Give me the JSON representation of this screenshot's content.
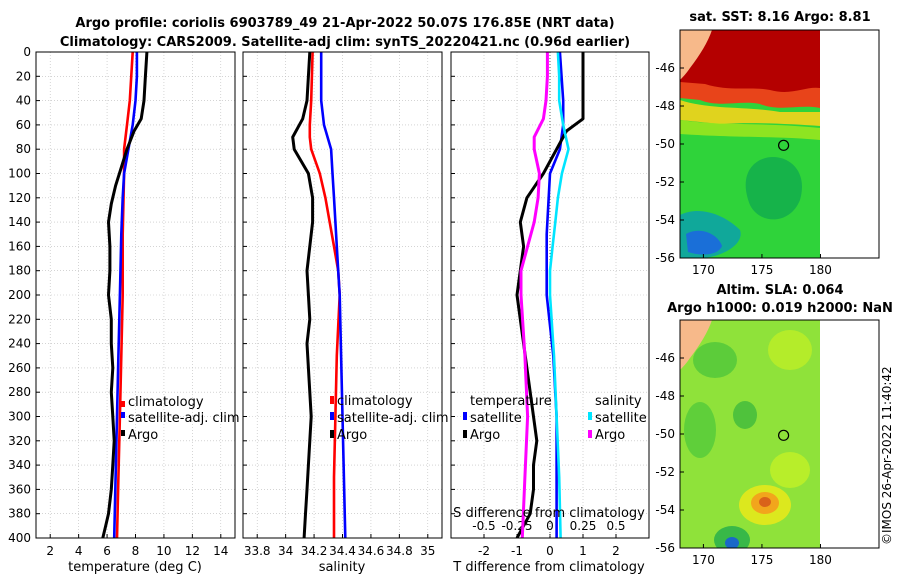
{
  "title_line1": "Argo profile: coriolis 6903789_49 21-Apr-2022 50.07S 176.85E (NRT data)",
  "title_line2": "Climatology: CARS2009. Satellite-adj clim: synTS_20220421.nc (0.96d earlier)",
  "credit": "©IMOS 26-Apr-2022 11:40:42",
  "colors": {
    "climatology": "#ff0000",
    "satellite": "#0000ff",
    "argo": "#000000",
    "sal_satellite": "#00e5ff",
    "sal_argo": "#ff00ff"
  },
  "chart_data": [
    {
      "type": "line",
      "id": "temperature",
      "xlabel": "temperature (deg C)",
      "ylabel": "depth",
      "xlim": [
        1,
        15
      ],
      "ylim": [
        0,
        400
      ],
      "yreversed": true,
      "xticks": [
        2,
        4,
        6,
        8,
        10,
        12,
        14
      ],
      "yticks": [
        0,
        20,
        40,
        60,
        80,
        100,
        120,
        140,
        160,
        180,
        200,
        220,
        240,
        260,
        280,
        300,
        320,
        340,
        360,
        380,
        400
      ],
      "grid": true,
      "legend": [
        "climatology",
        "satellite-adj. clim",
        "Argo"
      ],
      "series": [
        {
          "name": "climatology",
          "color": "#ff0000",
          "depth": [
            0,
            40,
            60,
            80,
            100,
            150,
            200,
            250,
            300,
            350,
            400
          ],
          "values": [
            7.8,
            7.6,
            7.4,
            7.2,
            7.2,
            7.1,
            7.1,
            7.0,
            6.9,
            6.8,
            6.7
          ]
        },
        {
          "name": "satellite-adj. clim",
          "color": "#0000ff",
          "depth": [
            0,
            20,
            40,
            60,
            80,
            100,
            120,
            150,
            200,
            250,
            300,
            350,
            400
          ],
          "values": [
            8.1,
            8.1,
            8.0,
            7.8,
            7.5,
            7.2,
            7.1,
            7.0,
            6.9,
            6.8,
            6.7,
            6.6,
            6.5
          ]
        },
        {
          "name": "Argo",
          "color": "#000000",
          "depth": [
            0,
            20,
            40,
            55,
            65,
            80,
            95,
            110,
            125,
            140,
            160,
            180,
            200,
            220,
            240,
            260,
            280,
            300,
            320,
            340,
            360,
            380,
            390,
            400
          ],
          "values": [
            8.8,
            8.7,
            8.6,
            8.4,
            7.9,
            7.4,
            7.0,
            6.6,
            6.3,
            6.1,
            6.2,
            6.2,
            6.1,
            6.3,
            6.3,
            6.4,
            6.3,
            6.4,
            6.5,
            6.4,
            6.3,
            6.1,
            5.9,
            5.7
          ]
        }
      ]
    },
    {
      "type": "line",
      "id": "salinity",
      "xlabel": "salinity",
      "ylabel": "depth",
      "xlim": [
        33.7,
        35.1
      ],
      "ylim": [
        0,
        400
      ],
      "yreversed": true,
      "xticks": [
        33.8,
        34,
        34.2,
        34.4,
        34.6,
        34.8,
        35
      ],
      "xticklabels": [
        "33.8",
        "34",
        "34.2",
        "34.4",
        "34.6",
        "34.8",
        "35"
      ],
      "grid": true,
      "legend": [
        "climatology",
        "satellite-adj. clim",
        "Argo"
      ],
      "series": [
        {
          "name": "climatology",
          "color": "#ff0000",
          "depth": [
            0,
            40,
            60,
            70,
            80,
            100,
            120,
            140,
            160,
            180,
            200,
            250,
            300,
            350,
            400
          ],
          "values": [
            34.19,
            34.18,
            34.17,
            34.17,
            34.18,
            34.24,
            34.28,
            34.31,
            34.34,
            34.37,
            34.38,
            34.36,
            34.35,
            34.34,
            34.34
          ]
        },
        {
          "name": "satellite-adj. clim",
          "color": "#0000ff",
          "depth": [
            0,
            20,
            40,
            60,
            80,
            100,
            120,
            140,
            160,
            180,
            200,
            250,
            300,
            350,
            400
          ],
          "values": [
            34.25,
            34.25,
            34.25,
            34.27,
            34.32,
            34.33,
            34.34,
            34.35,
            34.36,
            34.37,
            34.38,
            34.39,
            34.4,
            34.41,
            34.42
          ]
        },
        {
          "name": "Argo",
          "color": "#000000",
          "depth": [
            0,
            20,
            40,
            55,
            70,
            80,
            90,
            100,
            120,
            140,
            160,
            180,
            200,
            220,
            240,
            260,
            280,
            300,
            320,
            340,
            360,
            380,
            400
          ],
          "values": [
            34.17,
            34.16,
            34.15,
            34.12,
            34.05,
            34.06,
            34.11,
            34.16,
            34.19,
            34.19,
            34.17,
            34.15,
            34.16,
            34.17,
            34.15,
            34.16,
            34.17,
            34.18,
            34.17,
            34.16,
            34.15,
            34.14,
            34.13
          ]
        }
      ]
    },
    {
      "type": "line",
      "id": "difference",
      "xlabel": "T difference from climatology",
      "top_xlabel": "S difference from climatology",
      "ylabel": "depth",
      "xlim": [
        -3,
        3
      ],
      "ylim": [
        0,
        400
      ],
      "yreversed": true,
      "xticks": [
        -2,
        -1,
        0,
        1,
        2
      ],
      "top_ticklabels": [
        "-0.5",
        "-0.25",
        "0",
        "0.25",
        "0.5"
      ],
      "grid": true,
      "legend_temperature_title": "temperature",
      "legend_salinity_title": "salinity",
      "legend_temperature": [
        "satellite",
        "Argo"
      ],
      "legend_salinity": [
        "satellite",
        "Argo"
      ],
      "series": [
        {
          "name": "temperature satellite",
          "color": "#0000ff",
          "depth": [
            0,
            40,
            60,
            80,
            100,
            150,
            200,
            250,
            300,
            350,
            400
          ],
          "values": [
            0.3,
            0.4,
            0.4,
            0.3,
            0.0,
            -0.1,
            -0.1,
            0.1,
            0.2,
            0.2,
            0.2
          ]
        },
        {
          "name": "temperature Argo",
          "color": "#000000",
          "depth": [
            0,
            20,
            40,
            55,
            65,
            80,
            100,
            120,
            140,
            160,
            180,
            200,
            220,
            240,
            260,
            280,
            300,
            320,
            340,
            360,
            380,
            390,
            400
          ],
          "values": [
            1.0,
            1.0,
            1.0,
            1.0,
            0.5,
            0.2,
            -0.2,
            -0.7,
            -0.9,
            -0.8,
            -0.9,
            -1.0,
            -0.9,
            -0.8,
            -0.7,
            -0.6,
            -0.5,
            -0.4,
            -0.5,
            -0.5,
            -0.6,
            -0.8,
            -1.0
          ]
        },
        {
          "name": "salinity satellite",
          "color": "#00e5ff",
          "depth": [
            0,
            20,
            40,
            60,
            80,
            100,
            120,
            140,
            160,
            180,
            200,
            250,
            300,
            350,
            400
          ],
          "values": [
            0.06,
            0.07,
            0.07,
            0.1,
            0.14,
            0.09,
            0.06,
            0.04,
            0.02,
            0.0,
            0.0,
            0.03,
            0.05,
            0.07,
            0.08
          ]
        },
        {
          "name": "salinity Argo",
          "color": "#ff00ff",
          "depth": [
            0,
            20,
            40,
            55,
            70,
            80,
            100,
            120,
            140,
            160,
            180,
            200,
            250,
            300,
            350,
            400
          ],
          "values": [
            -0.02,
            -0.02,
            -0.03,
            -0.05,
            -0.12,
            -0.12,
            -0.08,
            -0.09,
            -0.12,
            -0.17,
            -0.22,
            -0.22,
            -0.19,
            -0.17,
            -0.19,
            -0.21
          ]
        }
      ]
    },
    {
      "type": "heatmap",
      "id": "sst_map",
      "title": "sat. SST: 8.16 Argo: 8.81",
      "xlim": [
        168,
        185
      ],
      "ylim": [
        -56,
        -44
      ],
      "xticks": [
        170,
        175,
        180
      ],
      "yticks": [
        -46,
        -48,
        -50,
        -52,
        -54,
        -56
      ],
      "argo_position": [
        176.85,
        -50.07
      ]
    },
    {
      "type": "heatmap",
      "id": "sla_map",
      "title": "Altim. SLA: 0.064",
      "subtitle": "Argo h1000: 0.019 h2000: NaN",
      "xlim": [
        168,
        185
      ],
      "ylim": [
        -56,
        -44
      ],
      "xticks": [
        170,
        175,
        180
      ],
      "yticks": [
        -46,
        -48,
        -50,
        -52,
        -54,
        -56
      ],
      "argo_position": [
        176.85,
        -50.07
      ]
    }
  ]
}
